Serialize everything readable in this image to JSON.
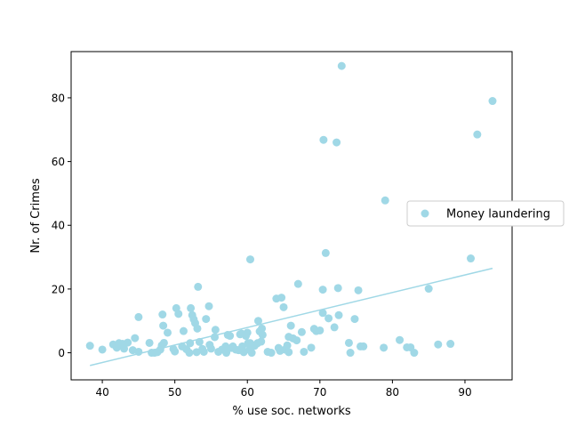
{
  "chart_data": {
    "type": "scatter",
    "title": "",
    "xlabel": "% use soc. networks",
    "ylabel": "Nr. of Crimes",
    "xlim": [
      35.7,
      96.5
    ],
    "ylim": [
      -8.5,
      94.5
    ],
    "xticks": [
      40,
      50,
      60,
      70,
      80,
      90
    ],
    "yticks": [
      0,
      20,
      40,
      60,
      80
    ],
    "grid": false,
    "legend_placement": "right",
    "series": [
      {
        "name": "Money laundering",
        "color": "#a0d8e6",
        "points": [
          [
            38.3,
            2.2
          ],
          [
            40.0,
            1.0
          ],
          [
            41.5,
            2.6
          ],
          [
            42.0,
            1.6
          ],
          [
            42.3,
            3.0
          ],
          [
            42.8,
            2.8
          ],
          [
            43.0,
            1.3
          ],
          [
            43.5,
            3.2
          ],
          [
            44.2,
            0.8
          ],
          [
            44.5,
            4.6
          ],
          [
            45.0,
            0.3
          ],
          [
            45.0,
            11.2
          ],
          [
            46.5,
            3.1
          ],
          [
            46.8,
            0.0
          ],
          [
            47.2,
            0.0
          ],
          [
            47.6,
            0.2
          ],
          [
            48.0,
            1.0
          ],
          [
            48.2,
            2.3
          ],
          [
            48.3,
            12.0
          ],
          [
            48.4,
            8.5
          ],
          [
            48.5,
            3.1
          ],
          [
            49.0,
            6.3
          ],
          [
            49.8,
            1.2
          ],
          [
            50.0,
            0.4
          ],
          [
            50.2,
            14.0
          ],
          [
            50.5,
            12.2
          ],
          [
            51.0,
            2.0
          ],
          [
            51.2,
            6.8
          ],
          [
            51.6,
            1.1
          ],
          [
            52.0,
            0.0
          ],
          [
            52.1,
            3.0
          ],
          [
            52.2,
            14.0
          ],
          [
            52.4,
            11.8
          ],
          [
            52.6,
            10.5
          ],
          [
            52.8,
            9.3
          ],
          [
            53.0,
            0.2
          ],
          [
            53.1,
            7.6
          ],
          [
            53.2,
            20.7
          ],
          [
            53.4,
            3.4
          ],
          [
            53.8,
            1.2
          ],
          [
            54.0,
            0.3
          ],
          [
            54.3,
            10.6
          ],
          [
            54.7,
            14.6
          ],
          [
            54.8,
            2.5
          ],
          [
            55.0,
            1.3
          ],
          [
            55.5,
            4.9
          ],
          [
            55.6,
            7.2
          ],
          [
            56.0,
            0.3
          ],
          [
            56.5,
            1.0
          ],
          [
            57.0,
            2.0
          ],
          [
            57.1,
            0.0
          ],
          [
            57.3,
            5.6
          ],
          [
            57.6,
            5.3
          ],
          [
            57.8,
            1.5
          ],
          [
            58.0,
            2.0
          ],
          [
            58.4,
            1.0
          ],
          [
            58.8,
            0.8
          ],
          [
            59.0,
            5.8
          ],
          [
            59.2,
            6.0
          ],
          [
            59.3,
            2.0
          ],
          [
            59.5,
            0.2
          ],
          [
            59.8,
            5.3
          ],
          [
            60.0,
            6.3
          ],
          [
            60.1,
            3.0
          ],
          [
            60.3,
            1.0
          ],
          [
            60.4,
            3.0
          ],
          [
            60.5,
            2.0
          ],
          [
            60.6,
            0.0
          ],
          [
            60.4,
            29.3
          ],
          [
            61.0,
            2.2
          ],
          [
            61.4,
            3.0
          ],
          [
            61.5,
            10.0
          ],
          [
            61.7,
            6.7
          ],
          [
            61.9,
            3.5
          ],
          [
            62.0,
            7.6
          ],
          [
            62.1,
            5.6
          ],
          [
            62.8,
            0.3
          ],
          [
            63.3,
            0.0
          ],
          [
            64.0,
            17.0
          ],
          [
            64.3,
            1.5
          ],
          [
            64.5,
            0.6
          ],
          [
            64.7,
            17.3
          ],
          [
            65.0,
            14.3
          ],
          [
            65.2,
            1.0
          ],
          [
            65.5,
            2.3
          ],
          [
            65.7,
            0.2
          ],
          [
            65.7,
            5.0
          ],
          [
            66.0,
            8.5
          ],
          [
            66.3,
            4.5
          ],
          [
            66.8,
            3.9
          ],
          [
            67.0,
            21.6
          ],
          [
            67.5,
            6.5
          ],
          [
            67.8,
            0.3
          ],
          [
            68.8,
            1.6
          ],
          [
            69.2,
            7.5
          ],
          [
            69.5,
            6.8
          ],
          [
            70.0,
            7.0
          ],
          [
            70.4,
            12.5
          ],
          [
            70.4,
            19.8
          ],
          [
            70.5,
            66.8
          ],
          [
            70.8,
            31.3
          ],
          [
            71.2,
            10.8
          ],
          [
            72.0,
            8.0
          ],
          [
            72.3,
            66.0
          ],
          [
            72.5,
            20.3
          ],
          [
            72.6,
            11.8
          ],
          [
            73.0,
            90.0
          ],
          [
            74.0,
            3.1
          ],
          [
            74.2,
            0.0
          ],
          [
            74.8,
            10.6
          ],
          [
            75.3,
            19.6
          ],
          [
            75.6,
            2.0
          ],
          [
            76.0,
            2.0
          ],
          [
            79.0,
            47.8
          ],
          [
            78.8,
            1.6
          ],
          [
            81.0,
            4.0
          ],
          [
            82.0,
            1.7
          ],
          [
            82.5,
            1.7
          ],
          [
            83.0,
            0.0
          ],
          [
            85.0,
            20.1
          ],
          [
            86.3,
            2.6
          ],
          [
            88.0,
            2.8
          ],
          [
            90.8,
            29.6
          ],
          [
            91.7,
            68.5
          ],
          [
            93.8,
            79.0
          ]
        ]
      }
    ],
    "trendline": {
      "color": "#a0d8e6",
      "points": [
        [
          38.3,
          -4.0
        ],
        [
          93.8,
          26.5
        ]
      ]
    }
  }
}
